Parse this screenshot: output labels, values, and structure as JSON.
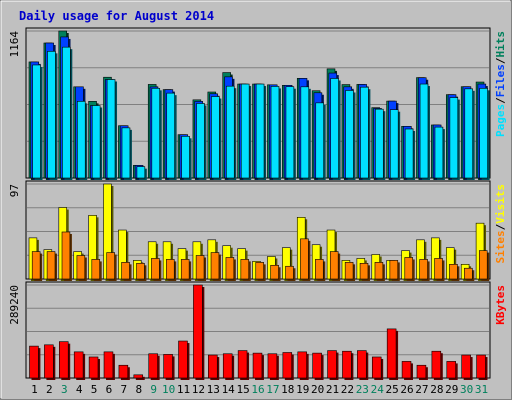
{
  "chart_data": {
    "type": "bar",
    "title": "Daily usage for August 2014",
    "categories": [
      "1",
      "2",
      "3",
      "4",
      "5",
      "6",
      "7",
      "8",
      "9",
      "10",
      "11",
      "12",
      "13",
      "14",
      "15",
      "16",
      "17",
      "18",
      "19",
      "20",
      "21",
      "22",
      "23",
      "24",
      "25",
      "26",
      "27",
      "28",
      "29",
      "30",
      "31"
    ],
    "weekend_days": [
      "3",
      "9",
      "10",
      "16",
      "17",
      "23",
      "24",
      "30",
      "31"
    ],
    "colors": {
      "background": "#C0C0C0",
      "plot_background": "#C0C0C0",
      "title": "#0000CC",
      "gridline": "#808080",
      "hits": "#00805C",
      "files": "#0040FF",
      "pages": "#00E0FF",
      "visits": "#FFFF00",
      "sites": "#FF8000",
      "kbytes": "#FF0000",
      "weekday_label": "#000000",
      "weekend_label": "#00805C"
    },
    "panels": [
      {
        "name": "hits-files-pages",
        "max_label": "1164",
        "ylim": [
          0,
          1164
        ],
        "legend": [
          {
            "text": "Pages",
            "color": "#00E0FF"
          },
          {
            "text": "/",
            "color": "#000000"
          },
          {
            "text": "Files",
            "color": "#0040FF"
          },
          {
            "text": "/",
            "color": "#000000"
          },
          {
            "text": "Hits",
            "color": "#00805C"
          }
        ],
        "series": [
          {
            "name": "Hits",
            "key": "hits",
            "values": [
              919,
              1069,
              1164,
              722,
              607,
              798,
              414,
              100,
              741,
              700,
              343,
              619,
              681,
              835,
              744,
              744,
              738,
              734,
              789,
              691,
              864,
              740,
              741,
              557,
              609,
              409,
              795,
              420,
              660,
              723,
              760
            ]
          },
          {
            "name": "Files",
            "key": "files",
            "values": [
              919,
              1069,
              1117,
              722,
              574,
              780,
              414,
              100,
              721,
              700,
              343,
              607,
              667,
              801,
              744,
              744,
              738,
              734,
              789,
              675,
              831,
              722,
              741,
              551,
              609,
              409,
              794,
              420,
              660,
              723,
              744
            ]
          },
          {
            "name": "Pages",
            "key": "pages",
            "values": [
              895,
              1003,
              1036,
              607,
              574,
              780,
              397,
              90,
              710,
              672,
              330,
              590,
              645,
              727,
              744,
              744,
              725,
              723,
              722,
              595,
              788,
              693,
              719,
              545,
              541,
              388,
              744,
              403,
              637,
              706,
              710
            ]
          }
        ]
      },
      {
        "name": "visits-sites",
        "max_label": "97",
        "ylim": [
          0,
          97
        ],
        "legend": [
          {
            "text": "Sites",
            "color": "#FF8000"
          },
          {
            "text": "/",
            "color": "#000000"
          },
          {
            "text": "Visits",
            "color": "#FFFF00"
          }
        ],
        "series": [
          {
            "name": "Visits",
            "key": "visits",
            "values": [
              42,
              30,
              73,
              28,
              65,
              97,
              50,
              19,
              38,
              38,
              31,
              38,
              40,
              34,
              31,
              18,
              23,
              32,
              63,
              35,
              50,
              19,
              21,
              25,
              19,
              29,
              40,
              42,
              32,
              15,
              57
            ]
          },
          {
            "name": "Sites",
            "key": "sites",
            "values": [
              28,
              28,
              48,
              24,
              20,
              27,
              17,
              16,
              21,
              20,
              20,
              24,
              27,
              22,
              20,
              17,
              14,
              13,
              41,
              20,
              28,
              17,
              16,
              17,
              19,
              22,
              20,
              21,
              15,
              11,
              29
            ]
          }
        ]
      },
      {
        "name": "kbytes",
        "max_label": "289240",
        "ylim": [
          0,
          289240
        ],
        "legend": [
          {
            "text": "KBytes",
            "color": "#FF0000"
          }
        ],
        "series": [
          {
            "name": "KBytes",
            "key": "kbytes",
            "values": [
              99200,
              103200,
              113100,
              81300,
              65400,
              81300,
              39700,
              9900,
              75400,
              73400,
              115000,
              289240,
              71400,
              75400,
              85300,
              77400,
              75400,
              79300,
              81300,
              77400,
              85300,
              83300,
              85300,
              65400,
              152700,
              51600,
              39700,
              83300,
              51600,
              71400,
              71400
            ]
          }
        ]
      }
    ]
  }
}
